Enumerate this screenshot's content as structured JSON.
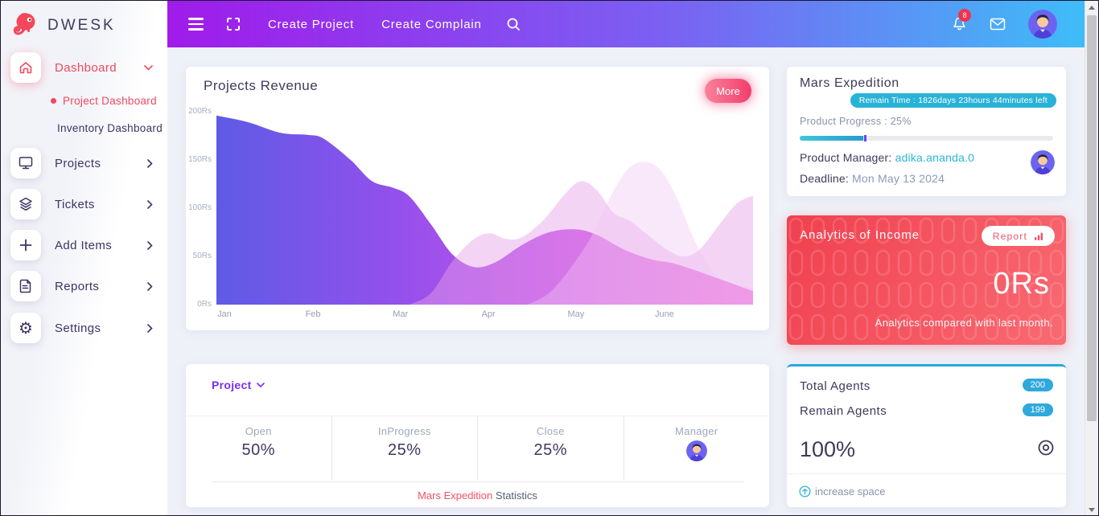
{
  "brand": "DWESK",
  "topbar": {
    "create_project": "Create Project",
    "create_complain": "Create Complain",
    "notification_count": "8"
  },
  "sidebar": {
    "items": [
      {
        "label": "Dashboard"
      },
      {
        "label": "Projects"
      },
      {
        "label": "Tickets"
      },
      {
        "label": "Add Items"
      },
      {
        "label": "Reports"
      },
      {
        "label": "Settings"
      }
    ],
    "dashboard_children": [
      {
        "label": "Project Dashboard"
      },
      {
        "label": "Inventory Dashboard"
      }
    ]
  },
  "revenue_card": {
    "title": "Projects Revenue",
    "more_label": "More"
  },
  "chart_data": {
    "type": "area",
    "title": "Projects Revenue",
    "x_labels": [
      "Jan",
      "Feb",
      "Mar",
      "Apr",
      "May",
      "June"
    ],
    "y_ticks_top_to_bottom": [
      "200Rs",
      "150Rs",
      "100Rs",
      "50Rs",
      "0Rs"
    ],
    "ylim": [
      0,
      200
    ],
    "unit_suffix": "Rs",
    "grid": false,
    "legend": false,
    "series": [
      {
        "name": "revenue-primary",
        "monthly_values": [
          195,
          175,
          120,
          41,
          78,
          45
        ],
        "fill": "gradMain",
        "opacity": 1,
        "spline": [
          [
            0,
            196
          ],
          [
            6,
            189
          ],
          [
            12,
            178
          ],
          [
            17,
            176
          ],
          [
            20,
            172
          ],
          [
            25,
            150
          ],
          [
            29,
            128
          ],
          [
            33,
            121
          ],
          [
            36,
            112
          ],
          [
            40,
            83
          ],
          [
            44,
            52
          ],
          [
            48,
            39
          ],
          [
            52,
            44
          ],
          [
            57,
            62
          ],
          [
            62,
            75
          ],
          [
            67,
            78
          ],
          [
            71,
            72
          ],
          [
            76,
            57
          ],
          [
            81,
            47
          ],
          [
            85,
            43
          ],
          [
            89,
            36
          ],
          [
            94,
            26
          ],
          [
            100,
            14
          ]
        ]
      },
      {
        "name": "revenue-secondary",
        "monthly_values": [
          0,
          0,
          0,
          72,
          123,
          58
        ],
        "fill": "#E79FE8",
        "opacity": 0.45,
        "spline": [
          [
            36,
            0
          ],
          [
            40,
            12
          ],
          [
            44,
            45
          ],
          [
            48,
            68
          ],
          [
            51,
            74
          ],
          [
            54,
            68
          ],
          [
            57,
            70
          ],
          [
            61,
            88
          ],
          [
            65,
            115
          ],
          [
            68,
            128
          ],
          [
            71,
            118
          ],
          [
            74,
            95
          ],
          [
            77,
            87
          ],
          [
            80,
            74
          ],
          [
            84,
            57
          ],
          [
            87,
            50
          ],
          [
            90,
            57
          ],
          [
            94,
            85
          ],
          [
            97,
            105
          ],
          [
            100,
            113
          ]
        ]
      },
      {
        "name": "revenue-tertiary",
        "monthly_values": [
          0,
          0,
          0,
          0,
          40,
          135
        ],
        "fill": "#EFC6F2",
        "opacity": 0.4,
        "spline": [
          [
            58,
            0
          ],
          [
            62,
            12
          ],
          [
            66,
            38
          ],
          [
            70,
            72
          ],
          [
            74,
            118
          ],
          [
            77,
            142
          ],
          [
            80,
            148
          ],
          [
            83,
            138
          ],
          [
            86,
            108
          ],
          [
            89,
            68
          ],
          [
            92,
            38
          ],
          [
            95,
            24
          ],
          [
            100,
            17
          ]
        ]
      }
    ]
  },
  "mars_card": {
    "title": "Mars Expedition",
    "remain_time": "Remain Time : 1826days 23hours 44minutes left",
    "progress_label": "Product Progress : 25%",
    "progress_pct": 25,
    "manager_label": "Product Manager: ",
    "manager_value": "adika.ananda.0",
    "deadline_label": "Deadline: ",
    "deadline_value": "Mon May 13 2024"
  },
  "income_card": {
    "title": "Analytics of Income",
    "report_label": "Report",
    "amount": "0Rs",
    "caption": "Analytics compared with last month."
  },
  "agents_card": {
    "total_label": "Total Agents",
    "total_value": "200",
    "remain_label": "Remain Agents",
    "remain_value": "199",
    "percent": "100%",
    "footer_link": "increase space"
  },
  "project_stats_card": {
    "dropdown_label": "Project",
    "stats": [
      {
        "label": "Open",
        "value": "50%"
      },
      {
        "label": "InProgress",
        "value": "25%"
      },
      {
        "label": "Close",
        "value": "25%"
      },
      {
        "label": "Manager",
        "value": ""
      }
    ],
    "footer_highlight": "Mars Expedition",
    "footer_rest": "Statistics"
  },
  "colors": {
    "topbar_gradient_start": "#A01BEA",
    "topbar_gradient_end": "#3EBDF8",
    "accent_red": "#F0485F",
    "accent_purple": "#7B2FF2",
    "accent_cyan": "#29B2D8",
    "income_red": "#F0404F",
    "chart_left": "#5E5BE6",
    "chart_right": "#F763D6",
    "text_dark": "#3F3A5A"
  }
}
